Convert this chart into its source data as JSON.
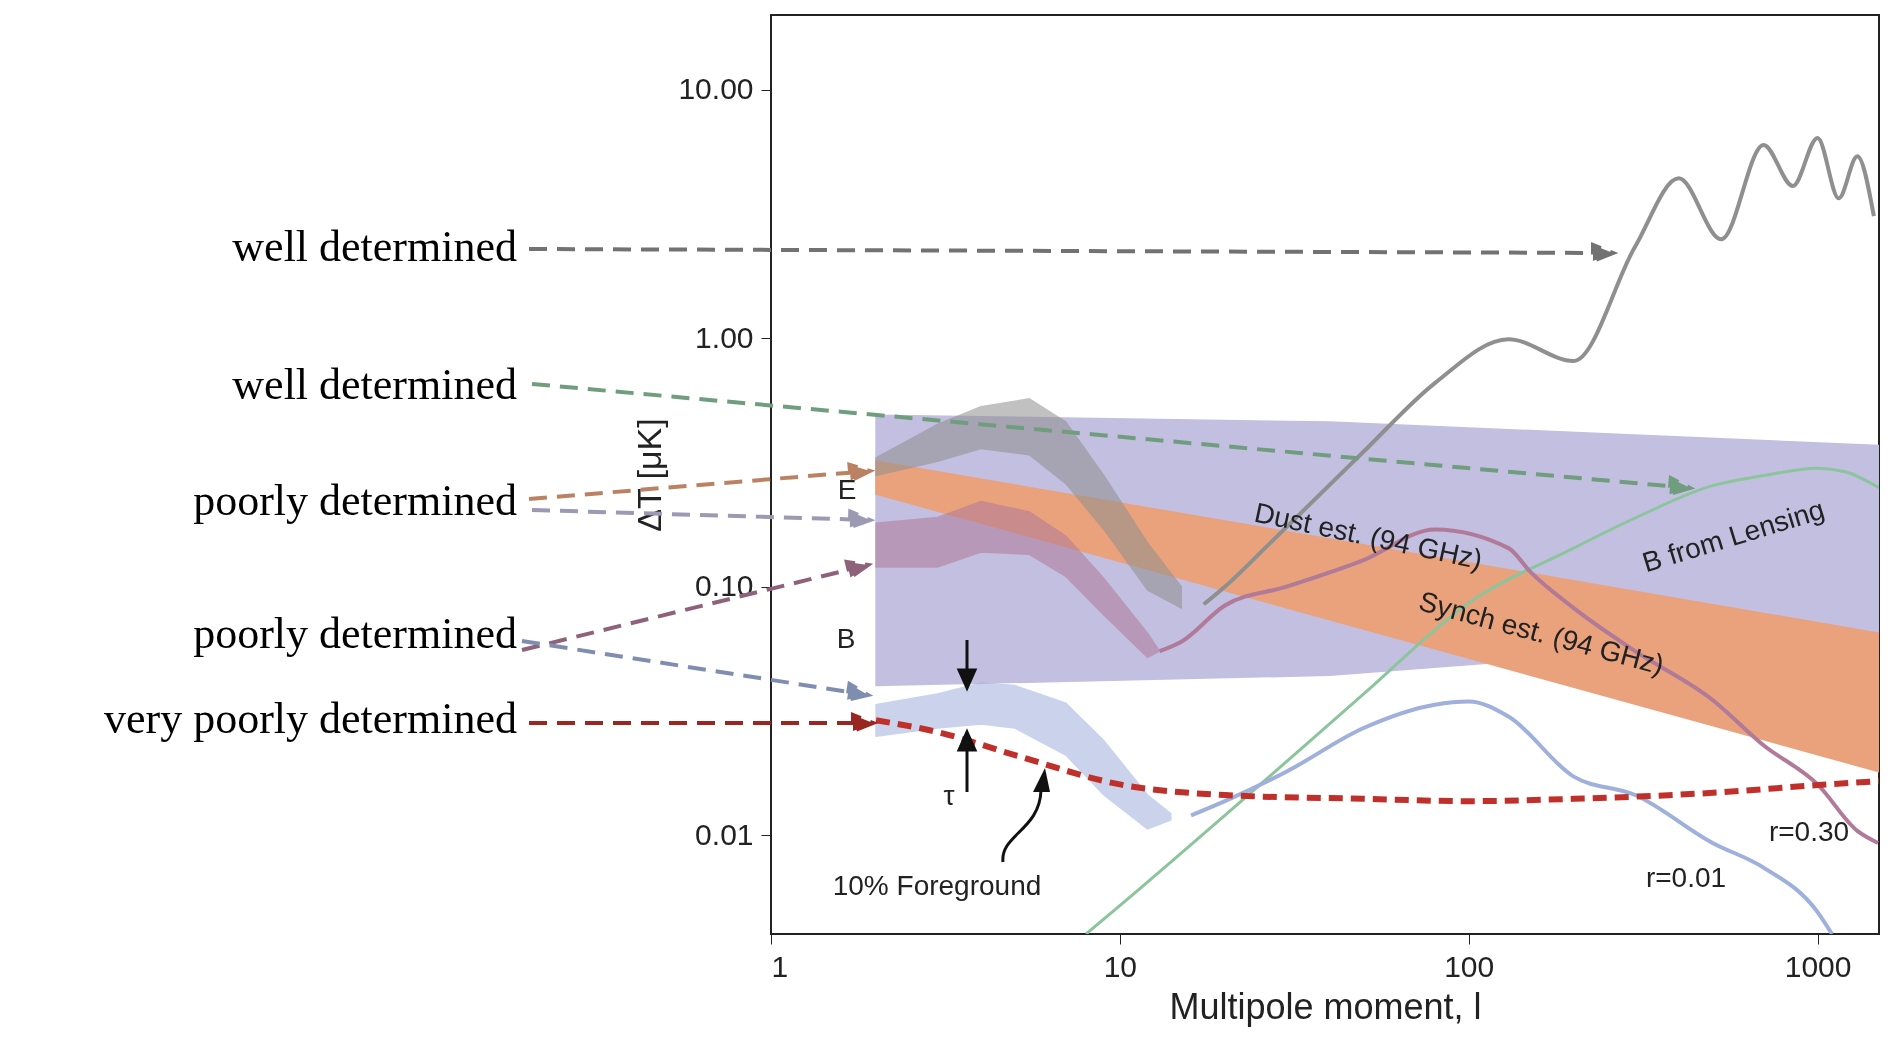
{
  "chart_data": {
    "type": "line",
    "xlabel": "Multipole moment, l",
    "ylabel": "ΔT [μK]",
    "log": "xy",
    "grid": false,
    "xlim": [
      1,
      1500
    ],
    "xticks": [
      1,
      10,
      100,
      1000
    ],
    "ylim": [
      0.004,
      20
    ],
    "yticks": [
      {
        "value": 0.01,
        "label": "0.01"
      },
      {
        "value": 0.1,
        "label": "0.10"
      },
      {
        "value": 1,
        "label": "1.00"
      },
      {
        "value": 10,
        "label": "10.00"
      }
    ],
    "series": [
      {
        "color": "#8f8f8f",
        "x": [
          2,
          3,
          4,
          5.5,
          7,
          9,
          12,
          15,
          17.4,
          20,
          27,
          50,
          80,
          130,
          200,
          300,
          400,
          530,
          700,
          850,
          1000,
          1150,
          1300,
          1450
        ],
        "upper": [
          0.33,
          0.45,
          0.53,
          0.57,
          0.46,
          0.28,
          0.15,
          0.1,
          null,
          null,
          null,
          null,
          null,
          null,
          null,
          null,
          null,
          null,
          null,
          null,
          null,
          null,
          null,
          null
        ],
        "lower": [
          0.28,
          0.32,
          0.36,
          0.34,
          0.26,
          0.17,
          0.097,
          0.082,
          null,
          null,
          null,
          null,
          null,
          null,
          null,
          null,
          null,
          null,
          null,
          null,
          null,
          null,
          null,
          null
        ],
        "values": [
          null,
          null,
          null,
          null,
          null,
          null,
          null,
          null,
          0.085,
          0.1,
          0.15,
          0.35,
          0.66,
          0.99,
          0.81,
          2.34,
          4.4,
          2.5,
          6.0,
          4.1,
          6.4,
          3.66,
          5.4,
          3.1
        ]
      },
      {
        "name": "B from Lensing",
        "color": "#8cc49c",
        "x": [
          8,
          10,
          20,
          50,
          100,
          200,
          300,
          500,
          700,
          1000,
          1200,
          1500
        ],
        "values": [
          0.004,
          0.0052,
          0.012,
          0.037,
          0.086,
          0.143,
          0.189,
          0.255,
          0.28,
          0.3,
          0.29,
          0.25
        ]
      },
      {
        "type": "area",
        "color": "#e9a27c",
        "x": [
          2,
          1500
        ],
        "upper": [
          0.32,
          0.065
        ],
        "lower": [
          0.236,
          0.018
        ],
        "values": [
          null,
          null
        ]
      },
      {
        "type": "area",
        "color": "#c3bfe0",
        "x": [
          2,
          40,
          1500
        ],
        "upper": [
          0.49,
          0.46,
          0.37
        ],
        "lower": [
          0.04,
          0.044,
          0.065
        ],
        "values": [
          null,
          null,
          null
        ]
      },
      {
        "name": "r=0.30",
        "color": "#b07a98",
        "x": [
          2,
          3,
          4,
          5.5,
          7,
          9,
          12,
          13,
          15,
          20,
          30,
          50,
          80,
          130,
          150,
          200,
          300,
          500,
          700,
          1000,
          1300,
          1490
        ],
        "upper": [
          0.18,
          0.19,
          0.22,
          0.2,
          0.16,
          0.108,
          0.065,
          0.055,
          null,
          null,
          null,
          null,
          null,
          null,
          null,
          null,
          null,
          null,
          null,
          null,
          null,
          null
        ],
        "lower": [
          0.12,
          0.12,
          0.138,
          0.135,
          0.11,
          0.077,
          0.052,
          0.055,
          null,
          null,
          null,
          null,
          null,
          null,
          null,
          null,
          null,
          null,
          null,
          null,
          null,
          null
        ],
        "values": [
          null,
          null,
          null,
          null,
          null,
          null,
          null,
          0.055,
          0.06,
          0.084,
          0.1,
          0.128,
          0.17,
          0.143,
          0.115,
          0.082,
          0.055,
          0.035,
          0.023,
          0.016,
          0.0104,
          0.0093
        ]
      },
      {
        "name": "r=0.01",
        "color": "#9fb0dc",
        "x": [
          2,
          3,
          4,
          5,
          7,
          9,
          12,
          14,
          16,
          20,
          30,
          50,
          80,
          100,
          130,
          200,
          300,
          500,
          700,
          1000,
          1100
        ],
        "upper": [
          0.0335,
          0.037,
          0.041,
          0.04,
          0.034,
          0.024,
          0.0145,
          0.0122,
          null,
          null,
          null,
          null,
          null,
          null,
          null,
          null,
          null,
          null,
          null,
          null,
          null
        ],
        "lower": [
          0.025,
          0.027,
          0.028,
          0.027,
          0.021,
          0.0145,
          0.0106,
          0.0115,
          null,
          null,
          null,
          null,
          null,
          null,
          null,
          null,
          null,
          null,
          null,
          null,
          null
        ],
        "values": [
          null,
          null,
          null,
          null,
          null,
          null,
          null,
          null,
          0.012,
          0.0137,
          0.018,
          0.027,
          0.0335,
          0.0345,
          0.03,
          0.0172,
          0.0145,
          0.0093,
          0.0074,
          0.0049,
          0.004
        ]
      },
      {
        "name": "10% Foreground",
        "color": "#c0302a",
        "line_style": "dashed",
        "x": [
          2,
          3,
          5,
          10,
          20,
          50,
          100,
          200,
          500,
          1000,
          1500
        ],
        "values": [
          0.029,
          0.026,
          0.021,
          0.016,
          0.0145,
          0.014,
          0.0137,
          0.014,
          0.0148,
          0.0159,
          0.0165
        ]
      }
    ],
    "annotations": [
      "well determined",
      "well determined",
      "poorly determined",
      "poorly determined",
      "very poorly determined",
      "E",
      "B",
      "τ",
      "Dust est. (94 GHz)",
      "Synch est. (94 GHz)"
    ]
  }
}
